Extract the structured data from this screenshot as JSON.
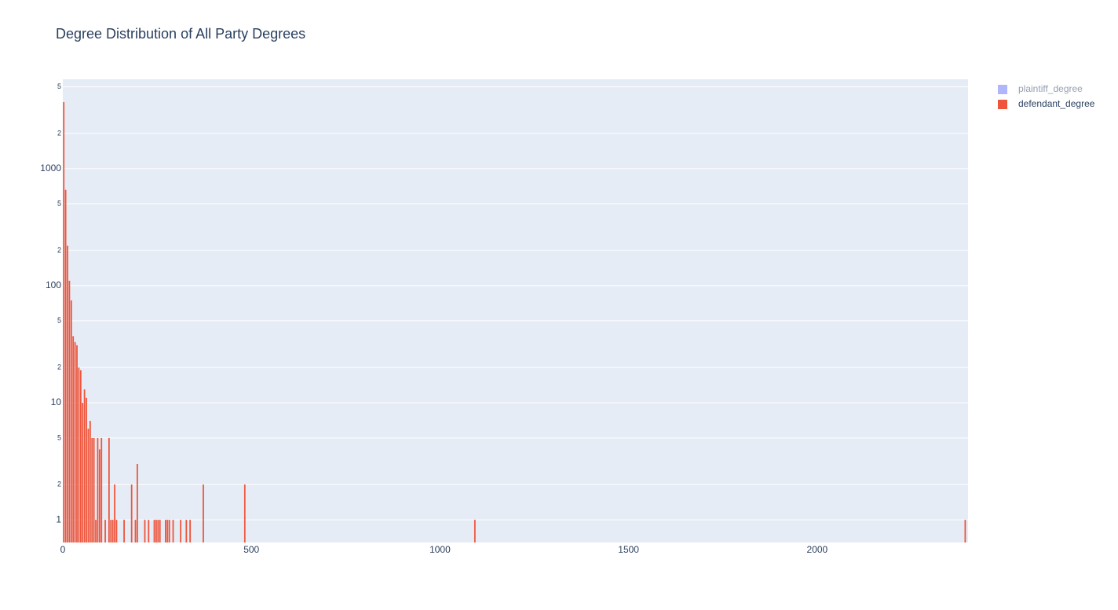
{
  "chart_data": {
    "type": "bar",
    "title": "Degree Distribution of All Party Degrees",
    "x": [
      2.5,
      7.5,
      12.5,
      17.5,
      22.5,
      27.5,
      32.5,
      37.5,
      42.5,
      47.5,
      52.5,
      57.5,
      62.5,
      67.5,
      72.5,
      77.5,
      82.5,
      87.5,
      92.5,
      97.5,
      102.5,
      112.5,
      122.5,
      127.5,
      132.5,
      137.5,
      142.5,
      162.5,
      182.5,
      192.5,
      197.5,
      217.5,
      227.5,
      242.5,
      247.5,
      252.5,
      257.5,
      272.5,
      277.5,
      282.5,
      292.5,
      312.5,
      327.5,
      337.5,
      372.5,
      482.5,
      1092.5,
      2392.5
    ],
    "series": [
      {
        "name": "plaintiff_degree",
        "color": "#636efa",
        "visible": "legendonly"
      },
      {
        "name": "defendant_degree",
        "color": "#EF553B",
        "values": [
          3700,
          660,
          220,
          110,
          75,
          37,
          33,
          31,
          20,
          19,
          10,
          13,
          11,
          6,
          7,
          5,
          5,
          1,
          5,
          4,
          5,
          1,
          5,
          1,
          1,
          2,
          1,
          1,
          2,
          1,
          3,
          1,
          1,
          1,
          1,
          1,
          1,
          1,
          1,
          1,
          1,
          1,
          1,
          1,
          2,
          2,
          1,
          1
        ]
      }
    ],
    "xlim": [
      0,
      2400
    ],
    "xticks": [
      0,
      500,
      1000,
      1500,
      2000
    ],
    "ylim": [
      0.64,
      5800
    ],
    "log_y": true,
    "yticks": [
      1,
      2,
      5,
      10,
      {
        "value": 20,
        "label": "2"
      },
      {
        "value": 50,
        "label": "5"
      },
      100,
      {
        "value": 200,
        "label": "2"
      },
      {
        "value": 500,
        "label": "5"
      },
      1000,
      {
        "value": 2000,
        "label": "2"
      },
      {
        "value": 5000,
        "label": "5"
      }
    ],
    "grid": true
  }
}
